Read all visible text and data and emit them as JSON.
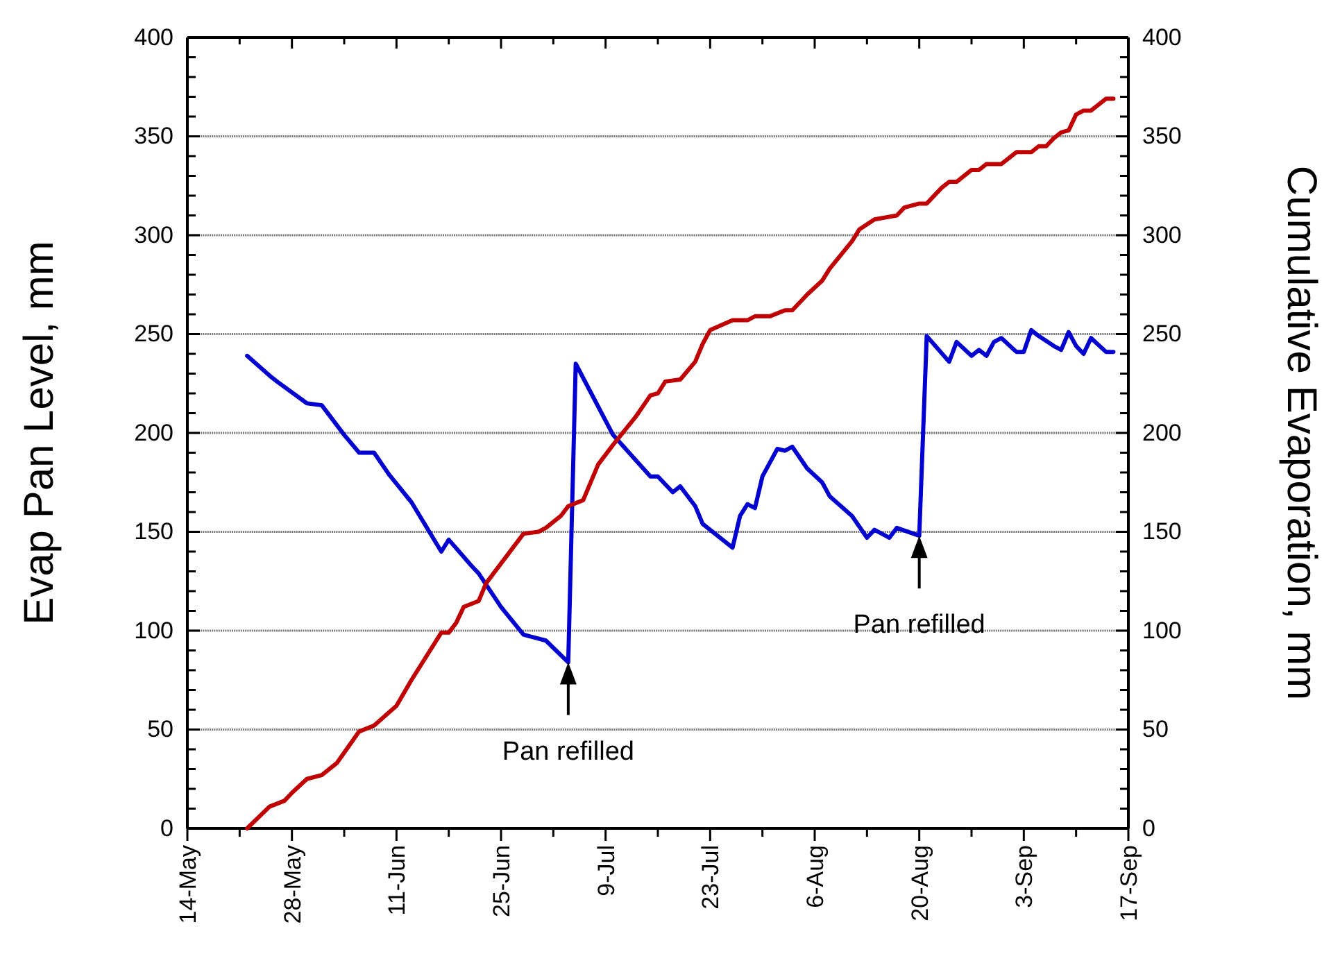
{
  "chart_data": {
    "type": "line",
    "ylabel": "Evap Pan Level, mm",
    "y2label": "Cumulative Evaporation, mm",
    "xlim": [
      "--05-14",
      "--09-17"
    ],
    "xticks": [
      {
        "value": "--05-14",
        "label": "14-May"
      },
      {
        "value": "--05-21",
        "label": null
      },
      {
        "value": "--05-28",
        "label": "28-May"
      },
      {
        "value": "--06-04",
        "label": null
      },
      {
        "value": "--06-11",
        "label": "11-Jun"
      },
      {
        "value": "--06-18",
        "label": null
      },
      {
        "value": "--06-25",
        "label": "25-Jun"
      },
      {
        "value": "--07-02",
        "label": null
      },
      {
        "value": "--07-09",
        "label": "9-Jul"
      },
      {
        "value": "--07-16",
        "label": null
      },
      {
        "value": "--07-23",
        "label": "23-Jul"
      },
      {
        "value": "--07-30",
        "label": null
      },
      {
        "value": "--08-06",
        "label": "6-Aug"
      },
      {
        "value": "--08-13",
        "label": null
      },
      {
        "value": "--08-20",
        "label": "20-Aug"
      },
      {
        "value": "--08-27",
        "label": null
      },
      {
        "value": "--09-03",
        "label": "3-Sep"
      },
      {
        "value": "--09-10",
        "label": null
      },
      {
        "value": "--09-17",
        "label": "17-Sep"
      }
    ],
    "ylim": [
      0,
      400
    ],
    "yticks": [
      0,
      {
        "value": 10,
        "label": null
      },
      {
        "value": 20,
        "label": null
      },
      {
        "value": 30,
        "label": null
      },
      {
        "value": 40,
        "label": null
      },
      50,
      {
        "value": 60,
        "label": null
      },
      {
        "value": 70,
        "label": null
      },
      {
        "value": 80,
        "label": null
      },
      {
        "value": 90,
        "label": null
      },
      100,
      {
        "value": 110,
        "label": null
      },
      {
        "value": 120,
        "label": null
      },
      {
        "value": 130,
        "label": null
      },
      {
        "value": 140,
        "label": null
      },
      150,
      {
        "value": 160,
        "label": null
      },
      {
        "value": 170,
        "label": null
      },
      {
        "value": 180,
        "label": null
      },
      {
        "value": 190,
        "label": null
      },
      200,
      {
        "value": 210,
        "label": null
      },
      {
        "value": 220,
        "label": null
      },
      {
        "value": 230,
        "label": null
      },
      {
        "value": 240,
        "label": null
      },
      250,
      {
        "value": 260,
        "label": null
      },
      {
        "value": 270,
        "label": null
      },
      {
        "value": 280,
        "label": null
      },
      {
        "value": 290,
        "label": null
      },
      300,
      {
        "value": 310,
        "label": null
      },
      {
        "value": 320,
        "label": null
      },
      {
        "value": 330,
        "label": null
      },
      {
        "value": 340,
        "label": null
      },
      350,
      {
        "value": 360,
        "label": null
      },
      {
        "value": 370,
        "label": null
      },
      {
        "value": 380,
        "label": null
      },
      {
        "value": 390,
        "label": null
      },
      400
    ],
    "y2lim": [
      0,
      400
    ],
    "y2ticks": [
      0,
      {
        "value": 10,
        "label": null
      },
      {
        "value": 20,
        "label": null
      },
      {
        "value": 30,
        "label": null
      },
      {
        "value": 40,
        "label": null
      },
      50,
      {
        "value": 60,
        "label": null
      },
      {
        "value": 70,
        "label": null
      },
      {
        "value": 80,
        "label": null
      },
      {
        "value": 90,
        "label": null
      },
      100,
      {
        "value": 110,
        "label": null
      },
      {
        "value": 120,
        "label": null
      },
      {
        "value": 130,
        "label": null
      },
      {
        "value": 140,
        "label": null
      },
      150,
      {
        "value": 160,
        "label": null
      },
      {
        "value": 170,
        "label": null
      },
      {
        "value": 180,
        "label": null
      },
      {
        "value": 190,
        "label": null
      },
      200,
      {
        "value": 210,
        "label": null
      },
      {
        "value": 220,
        "label": null
      },
      {
        "value": 230,
        "label": null
      },
      {
        "value": 240,
        "label": null
      },
      250,
      {
        "value": 260,
        "label": null
      },
      {
        "value": 270,
        "label": null
      },
      {
        "value": 280,
        "label": null
      },
      {
        "value": 290,
        "label": null
      },
      300,
      {
        "value": 310,
        "label": null
      },
      {
        "value": 320,
        "label": null
      },
      {
        "value": 330,
        "label": null
      },
      {
        "value": 340,
        "label": null
      },
      350,
      {
        "value": 360,
        "label": null
      },
      {
        "value": 370,
        "label": null
      },
      {
        "value": 380,
        "label": null
      },
      {
        "value": 390,
        "label": null
      },
      400
    ],
    "grid": "y",
    "line_style": "solid",
    "marker": "none",
    "series": [
      {
        "color": "#0000d0",
        "x": [
          "--05-22",
          "--05-25",
          "--05-26",
          "--05-30",
          "--06-01",
          "--06-04",
          "--06-06",
          "--06-08",
          "--06-10",
          "--06-13",
          "--06-17",
          "--06-18",
          "--06-21",
          "--06-22",
          "--06-25",
          "--06-28",
          "--07-01",
          "--07-04",
          "--07-05",
          "--07-10",
          "--07-15",
          "--07-16",
          "--07-18",
          "--07-19",
          "--07-21",
          "--07-22",
          "--07-26",
          "--07-27",
          "--07-28",
          "--07-29",
          "--07-30",
          "--08-01",
          "--08-02",
          "--08-03",
          "--08-05",
          "--08-07",
          "--08-08",
          "--08-11",
          "--08-13",
          "--08-14",
          "--08-16",
          "--08-17",
          "--08-20",
          "--08-21",
          "--08-24",
          "--08-25",
          "--08-27",
          "--08-28",
          "--08-29",
          "--08-30",
          "--08-31",
          "--09-02",
          "--09-03",
          "--09-04",
          "--09-05",
          "--09-07",
          "--09-08",
          "--09-09",
          "--09-10",
          "--09-11",
          "--09-12",
          "--09-14",
          "--09-15"
        ],
        "values": [
          239,
          229,
          226,
          215,
          214,
          199,
          190,
          190,
          179,
          165,
          140,
          146,
          133,
          129,
          112,
          98,
          95,
          84,
          235,
          199,
          178,
          178,
          170,
          173,
          163,
          154,
          142,
          158,
          164,
          162,
          178,
          192,
          191,
          193,
          182,
          175,
          168,
          158,
          147,
          151,
          147,
          152,
          148,
          249,
          236,
          246,
          239,
          242,
          239,
          246,
          248,
          241,
          241,
          252,
          249,
          244,
          242,
          251,
          244,
          240,
          248,
          241,
          241
        ]
      },
      {
        "color": "#c00000",
        "x": [
          "--05-22",
          "--05-25",
          "--05-27",
          "--05-28",
          "--05-30",
          "--06-01",
          "--06-03",
          "--06-06",
          "--06-08",
          "--06-11",
          "--06-13",
          "--06-17",
          "--06-18",
          "--06-19",
          "--06-20",
          "--06-22",
          "--06-23",
          "--06-28",
          "--06-30",
          "--07-01",
          "--07-03",
          "--07-04",
          "--07-06",
          "--07-08",
          "--07-10",
          "--07-13",
          "--07-15",
          "--07-16",
          "--07-17",
          "--07-19",
          "--07-21",
          "--07-22",
          "--07-23",
          "--07-26",
          "--07-28",
          "--07-29",
          "--07-31",
          "--08-02",
          "--08-03",
          "--08-05",
          "--08-07",
          "--08-08",
          "--08-11",
          "--08-12",
          "--08-14",
          "--08-17",
          "--08-18",
          "--08-20",
          "--08-21",
          "--08-23",
          "--08-24",
          "--08-25",
          "--08-27",
          "--08-28",
          "--08-29",
          "--08-31",
          "--09-02",
          "--09-04",
          "--09-05",
          "--09-06",
          "--09-07",
          "--09-08",
          "--09-09",
          "--09-10",
          "--09-11",
          "--09-12",
          "--09-14",
          "--09-15"
        ],
        "values": [
          0,
          11,
          14,
          18,
          25,
          27,
          33,
          49,
          52,
          62,
          75,
          99,
          99,
          104,
          112,
          115,
          124,
          149,
          150,
          152,
          158,
          163,
          166,
          184,
          194,
          208,
          219,
          220,
          226,
          227,
          236,
          245,
          252,
          257,
          257,
          259,
          259,
          262,
          262,
          270,
          277,
          283,
          297,
          303,
          308,
          310,
          314,
          316,
          316,
          324,
          327,
          327,
          333,
          333,
          336,
          336,
          342,
          342,
          345,
          345,
          349,
          352,
          353,
          361,
          363,
          363,
          369,
          369
        ]
      }
    ],
    "annotations": [
      {
        "text": "Pan refilled",
        "x": "--07-04",
        "y": 84
      },
      {
        "text": "Pan refilled",
        "x": "--08-20",
        "y": 148
      }
    ]
  }
}
